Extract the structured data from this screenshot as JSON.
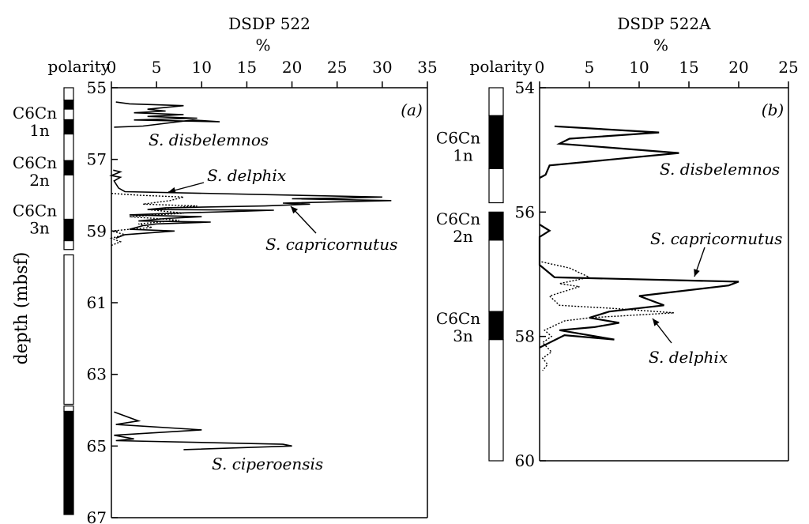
{
  "chart_data": [
    {
      "type": "line",
      "title": "DSDP 522",
      "xlabel": "%",
      "ylabel": "depth (mbsf)",
      "panel_label": "(a)",
      "polarity_label": "polarity",
      "xlim": [
        0,
        35
      ],
      "xticks": [
        0,
        5,
        10,
        15,
        20,
        25,
        30,
        35
      ],
      "ylim": [
        55,
        67
      ],
      "yticks": [
        55,
        57,
        59,
        61,
        63,
        65,
        67
      ],
      "polarity": {
        "black": [
          [
            55.35,
            55.6
          ],
          [
            55.9,
            56.3
          ],
          [
            57.05,
            57.45
          ],
          [
            58.7,
            59.3
          ],
          [
            64.1,
            67.0
          ]
        ],
        "white": [
          [
            55.0,
            55.35
          ],
          [
            55.6,
            55.9
          ],
          [
            56.3,
            57.05
          ],
          [
            57.45,
            58.7
          ],
          [
            59.3,
            59.55
          ],
          [
            59.7,
            63.9
          ],
          [
            63.95,
            64.1
          ]
        ]
      },
      "chron_labels": [
        {
          "text": [
            "C6Cn",
            "1n"
          ],
          "depth": 55.95
        },
        {
          "text": [
            "C6Cn",
            "2n"
          ],
          "depth": 57.35
        },
        {
          "text": [
            "C6Cn",
            "3n"
          ],
          "depth": 58.7
        }
      ],
      "series": [
        {
          "name": "S. disbelemnos",
          "style": "solid",
          "points": [
            [
              0.3,
              56.1
            ],
            [
              3.5,
              56.07
            ],
            [
              9,
              55.9
            ],
            [
              12,
              55.95
            ],
            [
              2.5,
              55.9
            ],
            [
              9.5,
              55.85
            ],
            [
              4,
              55.8
            ],
            [
              8,
              55.75
            ],
            [
              2.5,
              55.7
            ],
            [
              6,
              55.65
            ],
            [
              4,
              55.6
            ],
            [
              8,
              55.5
            ],
            [
              2,
              55.45
            ],
            [
              0.5,
              55.4
            ]
          ]
        },
        {
          "name": "S. delphix",
          "style": "dotted",
          "points": [
            [
              0,
              57.95
            ],
            [
              3,
              58.0
            ],
            [
              8,
              58.05
            ],
            [
              6.5,
              58.15
            ],
            [
              3.5,
              58.25
            ],
            [
              9.5,
              58.3
            ],
            [
              4,
              58.4
            ],
            [
              8,
              58.5
            ],
            [
              2,
              58.6
            ],
            [
              5,
              58.65
            ],
            [
              7.5,
              58.7
            ],
            [
              3,
              58.8
            ],
            [
              4.5,
              58.9
            ],
            [
              2,
              58.95
            ],
            [
              0,
              59.0
            ],
            [
              1.5,
              59.1
            ],
            [
              0,
              59.2
            ],
            [
              1,
              59.3
            ],
            [
              0,
              59.4
            ]
          ]
        },
        {
          "name": "S. capricornutus",
          "style": "solid",
          "points": [
            [
              0.2,
              57.3
            ],
            [
              1,
              57.35
            ],
            [
              0,
              57.45
            ],
            [
              1,
              57.5
            ],
            [
              0.3,
              57.6
            ],
            [
              0.8,
              57.8
            ],
            [
              1.5,
              57.9
            ],
            [
              30,
              58.05
            ],
            [
              26,
              58.08
            ],
            [
              20,
              58.1
            ],
            [
              31,
              58.15
            ],
            [
              19,
              58.22
            ],
            [
              22,
              58.25
            ],
            [
              17,
              58.3
            ],
            [
              6,
              58.35
            ],
            [
              4,
              58.4
            ],
            [
              18,
              58.42
            ],
            [
              14,
              58.45
            ],
            [
              7,
              58.5
            ],
            [
              2,
              58.55
            ],
            [
              10,
              58.6
            ],
            [
              6,
              58.65
            ],
            [
              3,
              58.72
            ],
            [
              11,
              58.75
            ],
            [
              5,
              58.8
            ],
            [
              3.5,
              58.85
            ],
            [
              2,
              58.95
            ],
            [
              7,
              59.0
            ],
            [
              1.5,
              59.1
            ],
            [
              0.5,
              59.2
            ]
          ]
        },
        {
          "name": "S. ciperoensis",
          "style": "solid",
          "points": [
            [
              0.3,
              64.05
            ],
            [
              3,
              64.3
            ],
            [
              0.5,
              64.4
            ],
            [
              10,
              64.55
            ],
            [
              0.3,
              64.7
            ],
            [
              2.5,
              64.8
            ],
            [
              0.5,
              64.85
            ],
            [
              19,
              64.95
            ],
            [
              20,
              65.0
            ],
            [
              8,
              65.1
            ]
          ]
        }
      ]
    },
    {
      "type": "line",
      "title": "DSDP 522A",
      "xlabel": "%",
      "panel_label": "(b)",
      "polarity_label": "polarity",
      "xlim": [
        0,
        25
      ],
      "xticks": [
        0,
        5,
        10,
        15,
        20,
        25
      ],
      "ylim": [
        54,
        60
      ],
      "yticks": [
        54,
        56,
        58,
        60
      ],
      "polarity": {
        "black": [
          [
            54.45,
            55.3
          ],
          [
            56.0,
            56.45
          ],
          [
            57.6,
            58.05
          ]
        ],
        "white": [
          [
            54.0,
            54.45
          ],
          [
            55.3,
            55.85
          ],
          [
            56.45,
            57.6
          ],
          [
            58.05,
            60.0
          ]
        ]
      },
      "chron_labels": [
        {
          "text": [
            "C6Cn",
            "1n"
          ],
          "depth": 54.95
        },
        {
          "text": [
            "C6Cn",
            "2n"
          ],
          "depth": 56.25
        },
        {
          "text": [
            "C6Cn",
            "3n"
          ],
          "depth": 57.85
        }
      ],
      "series": [
        {
          "name": "S. disbelemnos",
          "style": "solid",
          "points": [
            [
              0,
              55.45
            ],
            [
              0.6,
              55.4
            ],
            [
              1,
              55.25
            ],
            [
              14,
              55.05
            ],
            [
              2,
              54.9
            ],
            [
              3,
              54.82
            ],
            [
              12,
              54.72
            ],
            [
              1.5,
              54.62
            ]
          ]
        },
        {
          "name": "S. capricornutus",
          "style": "solid",
          "points": [
            [
              0,
              56.2
            ],
            [
              1,
              56.3
            ],
            [
              0,
              56.4
            ],
            [
              0,
              56.85
            ],
            [
              1.5,
              57.05
            ],
            [
              20,
              57.12
            ],
            [
              19,
              57.18
            ],
            [
              10,
              57.35
            ],
            [
              12.5,
              57.5
            ],
            [
              7,
              57.6
            ],
            [
              5,
              57.7
            ],
            [
              8,
              57.78
            ],
            [
              5.5,
              57.85
            ],
            [
              2,
              57.9
            ],
            [
              7.5,
              58.05
            ],
            [
              2.5,
              57.98
            ],
            [
              0,
              58.18
            ]
          ]
        },
        {
          "name": "S. delphix",
          "style": "dotted",
          "points": [
            [
              0.2,
              56.8
            ],
            [
              3,
              56.9
            ],
            [
              5,
              57.05
            ],
            [
              2,
              57.15
            ],
            [
              4,
              57.2
            ],
            [
              1,
              57.35
            ],
            [
              2,
              57.5
            ],
            [
              7.5,
              57.55
            ],
            [
              13.5,
              57.62
            ],
            [
              5,
              57.7
            ],
            [
              2.5,
              57.75
            ],
            [
              0.5,
              57.9
            ],
            [
              1.2,
              58.0
            ],
            [
              0.3,
              58.1
            ],
            [
              1.2,
              58.25
            ],
            [
              0.3,
              58.35
            ],
            [
              0.8,
              58.45
            ],
            [
              0.3,
              58.55
            ]
          ]
        }
      ]
    }
  ]
}
